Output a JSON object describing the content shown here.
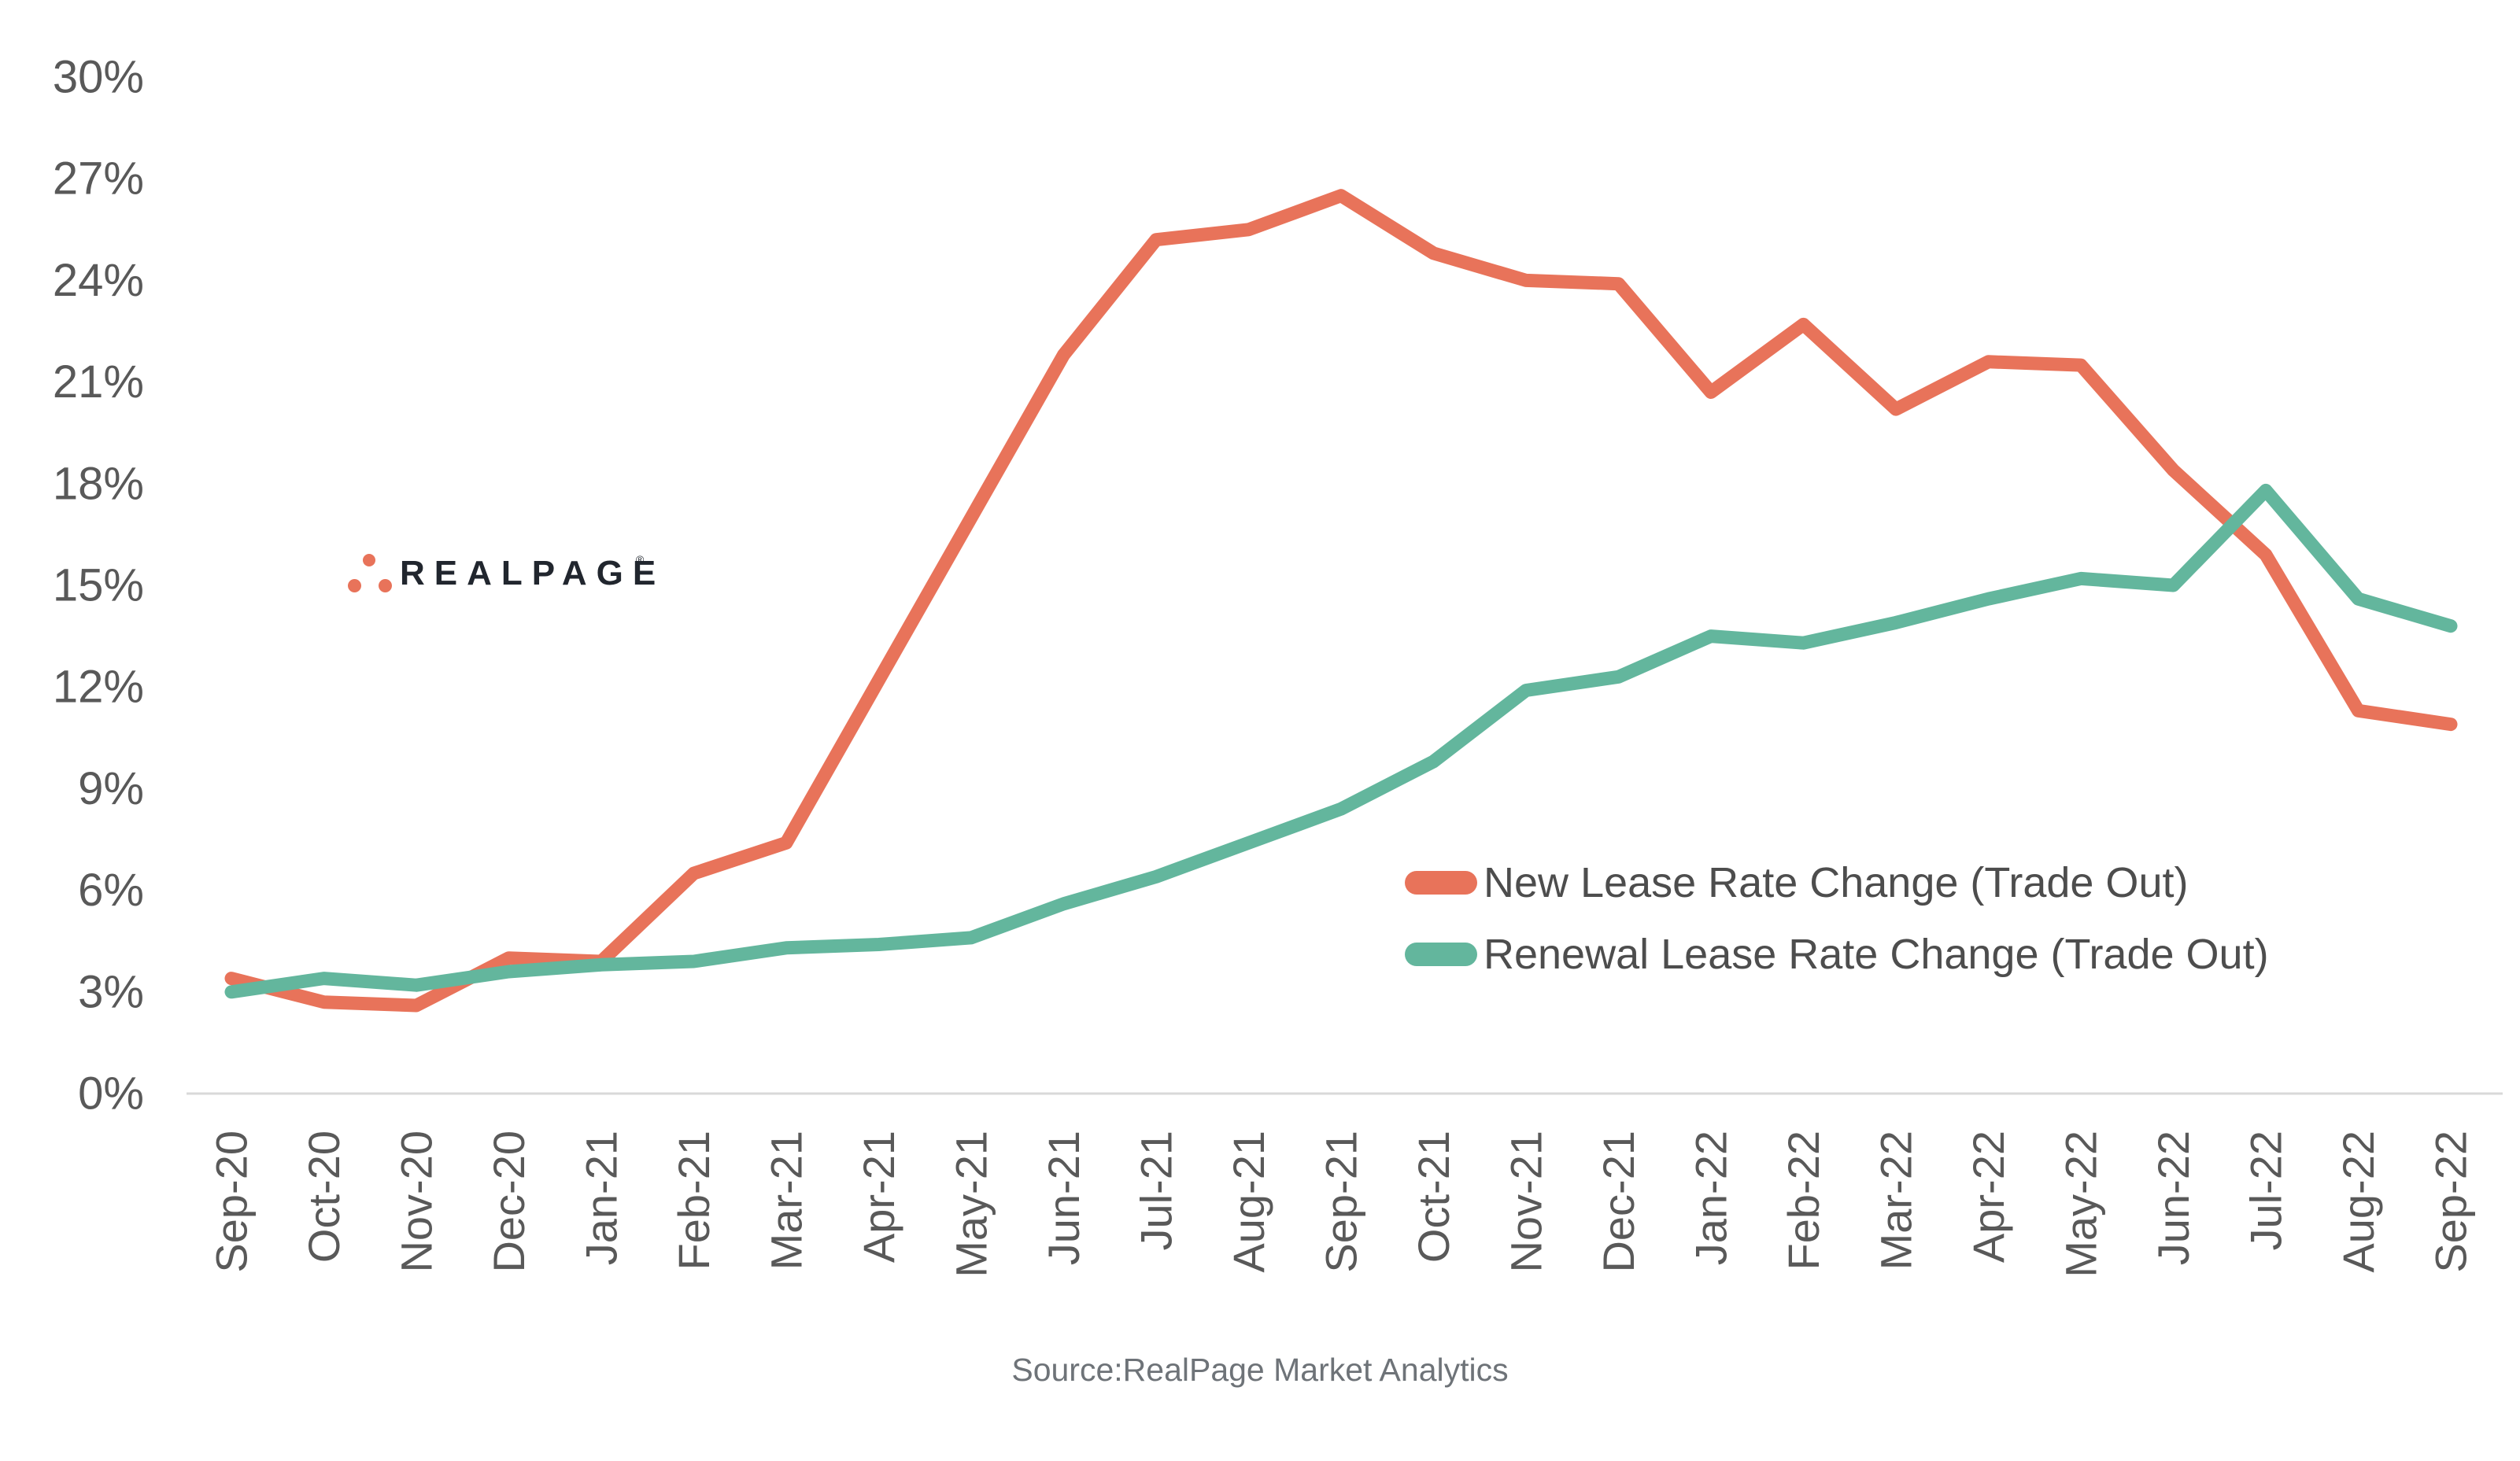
{
  "colors": {
    "orange": "#E8735A",
    "green": "#63B69D",
    "axis_label": "#595959",
    "legend_text": "#4D4D4D",
    "source_text": "#6E7378",
    "axis_line": "#D9D9D9",
    "logo_text": "#21262E"
  },
  "logo": {
    "text": "REALPAGE",
    "registered": "®"
  },
  "source": "Source:RealPage Market Analytics",
  "legend": [
    {
      "label": "New Lease Rate Change (Trade Out)",
      "color": "#E8735A"
    },
    {
      "label": "Renewal Lease Rate Change (Trade Out)",
      "color": "#63B69D"
    }
  ],
  "chart_data": {
    "type": "line",
    "title": "",
    "xlabel": "",
    "ylabel": "",
    "ylim": [
      0,
      30
    ],
    "ytick_step": 3,
    "ytick_suffix": "%",
    "grid": false,
    "legend_position": "right-middle",
    "categories": [
      "Sep-20",
      "Oct-20",
      "Nov-20",
      "Dec-20",
      "Jan-21",
      "Feb-21",
      "Mar-21",
      "Apr-21",
      "May-21",
      "Jun-21",
      "Jul-21",
      "Aug-21",
      "Sep-21",
      "Oct-21",
      "Nov-21",
      "Dec-21",
      "Jan-22",
      "Feb-22",
      "Mar-22",
      "Apr-22",
      "May-22",
      "Jun-22",
      "Jul-22",
      "Aug-22",
      "Sep-22"
    ],
    "series": [
      {
        "name": "New Lease Rate Change (Trade Out)",
        "color": "#E8735A",
        "values": [
          3.4,
          2.7,
          2.6,
          4.0,
          3.9,
          6.5,
          7.4,
          12.2,
          17.0,
          21.8,
          25.2,
          25.5,
          26.5,
          24.8,
          24.0,
          23.9,
          20.7,
          22.7,
          20.2,
          21.6,
          21.5,
          18.4,
          15.9,
          11.3,
          10.9
        ]
      },
      {
        "name": "Renewal Lease Rate Change (Trade Out)",
        "color": "#63B69D",
        "values": [
          3.0,
          3.4,
          3.2,
          3.6,
          3.8,
          3.9,
          4.3,
          4.4,
          4.6,
          5.6,
          6.4,
          7.4,
          8.4,
          9.8,
          11.9,
          12.3,
          13.5,
          13.3,
          13.9,
          14.6,
          15.2,
          15.0,
          17.8,
          14.6,
          13.8
        ]
      }
    ]
  },
  "y_axis_labels": [
    "0%",
    "3%",
    "6%",
    "9%",
    "12%",
    "15%",
    "18%",
    "21%",
    "24%",
    "27%",
    "30%"
  ]
}
